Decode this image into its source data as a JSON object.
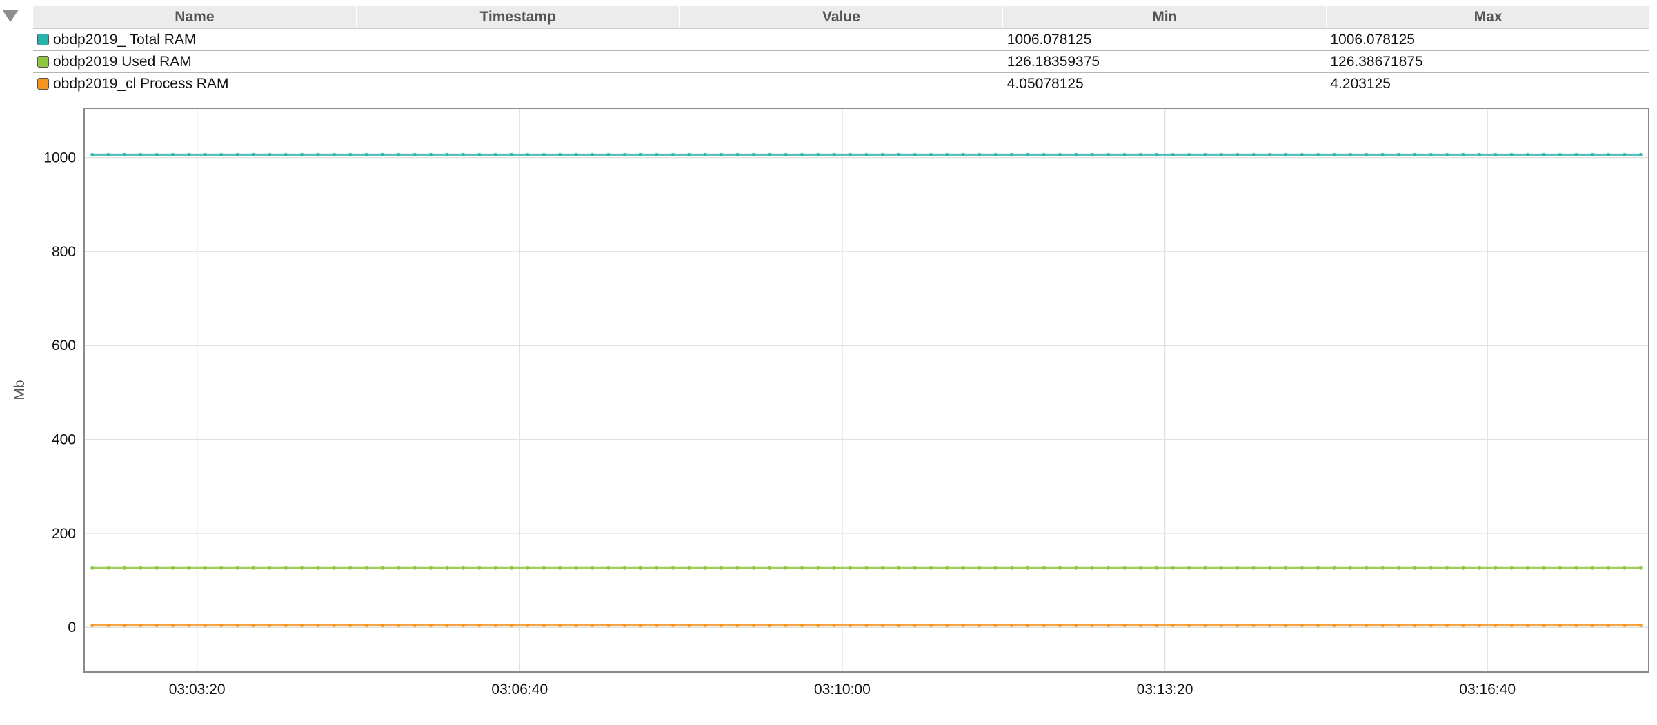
{
  "legend": {
    "columns": [
      "Name",
      "Timestamp",
      "Value",
      "Min",
      "Max"
    ],
    "rows": [
      {
        "name": "obdp2019_ Total RAM",
        "timestamp": "",
        "value": "",
        "min": "1006.078125",
        "max": "1006.078125",
        "color": "#2ab3ab"
      },
      {
        "name": "obdp2019 Used RAM",
        "timestamp": "",
        "value": "",
        "min": "126.18359375",
        "max": "126.38671875",
        "color": "#8dc63f"
      },
      {
        "name": "obdp2019_cl Process RAM",
        "timestamp": "",
        "value": "",
        "min": "4.05078125",
        "max": "4.203125",
        "color": "#f7941d"
      }
    ]
  },
  "chart_data": {
    "type": "line",
    "ylabel": "Mb",
    "xlabel": "",
    "ylim": [
      -95,
      1105
    ],
    "yticks": [
      0,
      200,
      400,
      600,
      800,
      1000
    ],
    "xlim": [
      "03:02:10",
      "03:18:20"
    ],
    "xticks": [
      "03:03:20",
      "03:06:40",
      "03:10:00",
      "03:13:20",
      "03:16:40"
    ],
    "grid": true,
    "point_interval_seconds": 10,
    "series": [
      {
        "name": "obdp2019_ Total RAM",
        "color": "#2ab3ab",
        "x_start": "03:02:15",
        "x_end": "03:18:15",
        "value": 1006.078125
      },
      {
        "name": "obdp2019 Used RAM",
        "color": "#8dc63f",
        "x_start": "03:02:15",
        "x_end": "03:18:15",
        "value": 126.2
      },
      {
        "name": "obdp2019_cl Process RAM",
        "color": "#f7941d",
        "x_start": "03:02:15",
        "x_end": "03:18:15",
        "value": 4.1
      }
    ]
  }
}
